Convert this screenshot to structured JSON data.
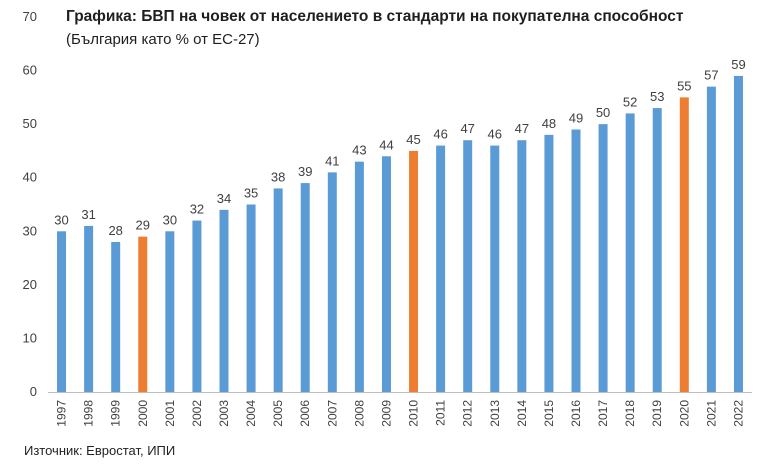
{
  "chart_data": {
    "type": "bar",
    "title": "Графика: БВП на човек от населението в стандарти на покупателна способност",
    "subtitle": "(България като % от ЕС-27)",
    "source": "Източник: Евростат, ИПИ",
    "categories": [
      "1997",
      "1998",
      "1999",
      "2000",
      "2001",
      "2002",
      "2003",
      "2004",
      "2005",
      "2006",
      "2007",
      "2008",
      "2009",
      "2010",
      "2011",
      "2012",
      "2013",
      "2014",
      "2015",
      "2016",
      "2017",
      "2018",
      "2019",
      "2020",
      "2021",
      "2022"
    ],
    "values": [
      30,
      31,
      28,
      29,
      30,
      32,
      34,
      35,
      38,
      39,
      41,
      43,
      44,
      45,
      46,
      47,
      46,
      47,
      48,
      49,
      50,
      52,
      53,
      55,
      57,
      59
    ],
    "highlighted_categories": [
      "2000",
      "2010",
      "2020"
    ],
    "ylim": [
      0,
      70
    ],
    "yticks": [
      0,
      10,
      20,
      30,
      40,
      50,
      60,
      70
    ],
    "grid": false,
    "legend": "none",
    "colors": {
      "bar": "#5b9bd5",
      "highlight": "#ed7d31",
      "text": "#404040",
      "axis": "#bfbfbf"
    }
  }
}
